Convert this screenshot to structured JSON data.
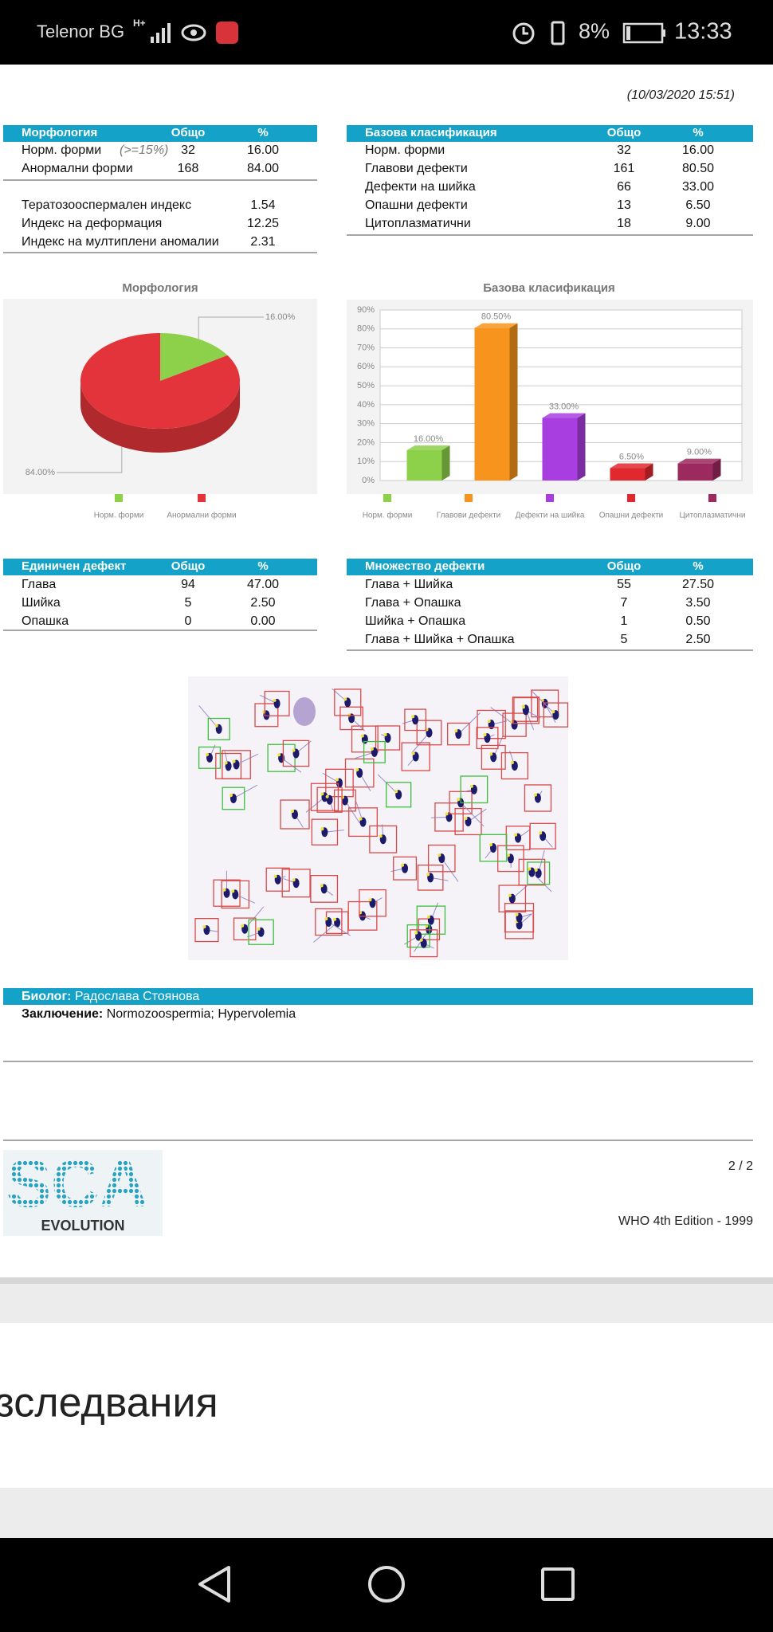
{
  "status_bar": {
    "carrier": "Telenor BG",
    "network": "H+",
    "battery": "8%",
    "time": "13:33"
  },
  "report": {
    "date": "(10/03/2020  15:51)",
    "morphology_table": {
      "header": [
        "Морфология",
        "Общо",
        "%"
      ],
      "note": "(>=15%)",
      "rows": [
        [
          "Норм. форми",
          "32",
          "16.00"
        ],
        [
          "Анормални форми",
          "168",
          "84.00"
        ]
      ]
    },
    "indices_table": {
      "rows": [
        [
          "Тератозооспермален индекс",
          "1.54"
        ],
        [
          "Индекс на деформация",
          "12.25"
        ],
        [
          "Индекс на мултиплени аномалии",
          "2.31"
        ]
      ]
    },
    "classification_table": {
      "header": [
        "Базова класификация",
        "Общо",
        "%"
      ],
      "rows": [
        [
          "Норм. форми",
          "32",
          "16.00"
        ],
        [
          "Главови дефекти",
          "161",
          "80.50"
        ],
        [
          "Дефекти на шийка",
          "66",
          "33.00"
        ],
        [
          "Опашни дефекти",
          "13",
          "6.50"
        ],
        [
          "Цитоплазматични",
          "18",
          "9.00"
        ]
      ]
    },
    "single_defect_table": {
      "header": [
        "Единичен дефект",
        "Общо",
        "%"
      ],
      "rows": [
        [
          "Глава",
          "94",
          "47.00"
        ],
        [
          "Шийка",
          "5",
          "2.50"
        ],
        [
          "Опашка",
          "0",
          "0.00"
        ]
      ]
    },
    "multiple_defects_table": {
      "header": [
        "Множество дефекти",
        "Общо",
        "%"
      ],
      "rows": [
        [
          "Глава + Шийка",
          "55",
          "27.50"
        ],
        [
          "Глава + Опашка",
          "7",
          "3.50"
        ],
        [
          "Шийка + Опашка",
          "1",
          "0.50"
        ],
        [
          "Глава + Шийка + Опашка",
          "5",
          "2.50"
        ]
      ]
    },
    "biologist": {
      "label": "Биолог:",
      "name": "Радослава Стоянова"
    },
    "conclusion": {
      "label": "Заключение:",
      "text": "Normozoospermia; Hypervolemia"
    },
    "page_number": "2 / 2",
    "edition": "WHO 4th Edition - 1999",
    "logo": {
      "title": "SCA",
      "subtitle": "EVOLUTION"
    }
  },
  "chart_data": [
    {
      "type": "pie",
      "title": "Морфология",
      "categories": [
        "Норм. форми",
        "Анормални форми"
      ],
      "values": [
        16,
        84
      ],
      "value_labels": [
        "16.00%",
        "84.00%"
      ],
      "colors": [
        "#8dd04a",
        "#e2343a"
      ]
    },
    {
      "type": "bar",
      "title": "Базова класификация",
      "categories": [
        "Норм. форми",
        "Главови дефекти",
        "Дефекти на шийка",
        "Опашни дефекти",
        "Цитоплазматични"
      ],
      "values": [
        16,
        80.5,
        33,
        6.5,
        9
      ],
      "value_labels": [
        "16.00%",
        "80.50%",
        "33.00%",
        "6.50%",
        "9.00%"
      ],
      "colors": [
        "#8dd04a",
        "#f7941d",
        "#a93ee0",
        "#e0282e",
        "#9c2a5e"
      ],
      "ylim": [
        0,
        90
      ],
      "yticks": [
        {
          "value": 0,
          "label": "0%"
        },
        {
          "value": 10,
          "label": "10%"
        },
        {
          "value": 20,
          "label": "20%"
        },
        {
          "value": 30,
          "label": "30%"
        },
        {
          "value": 40,
          "label": "40%"
        },
        {
          "value": 50,
          "label": "50%"
        },
        {
          "value": 60,
          "label": "60%"
        },
        {
          "value": 70,
          "label": "70%"
        },
        {
          "value": 80,
          "label": "80%"
        },
        {
          "value": 90,
          "label": "90%"
        }
      ],
      "grid": true
    }
  ],
  "background_page": {
    "heading": "зследвания"
  }
}
